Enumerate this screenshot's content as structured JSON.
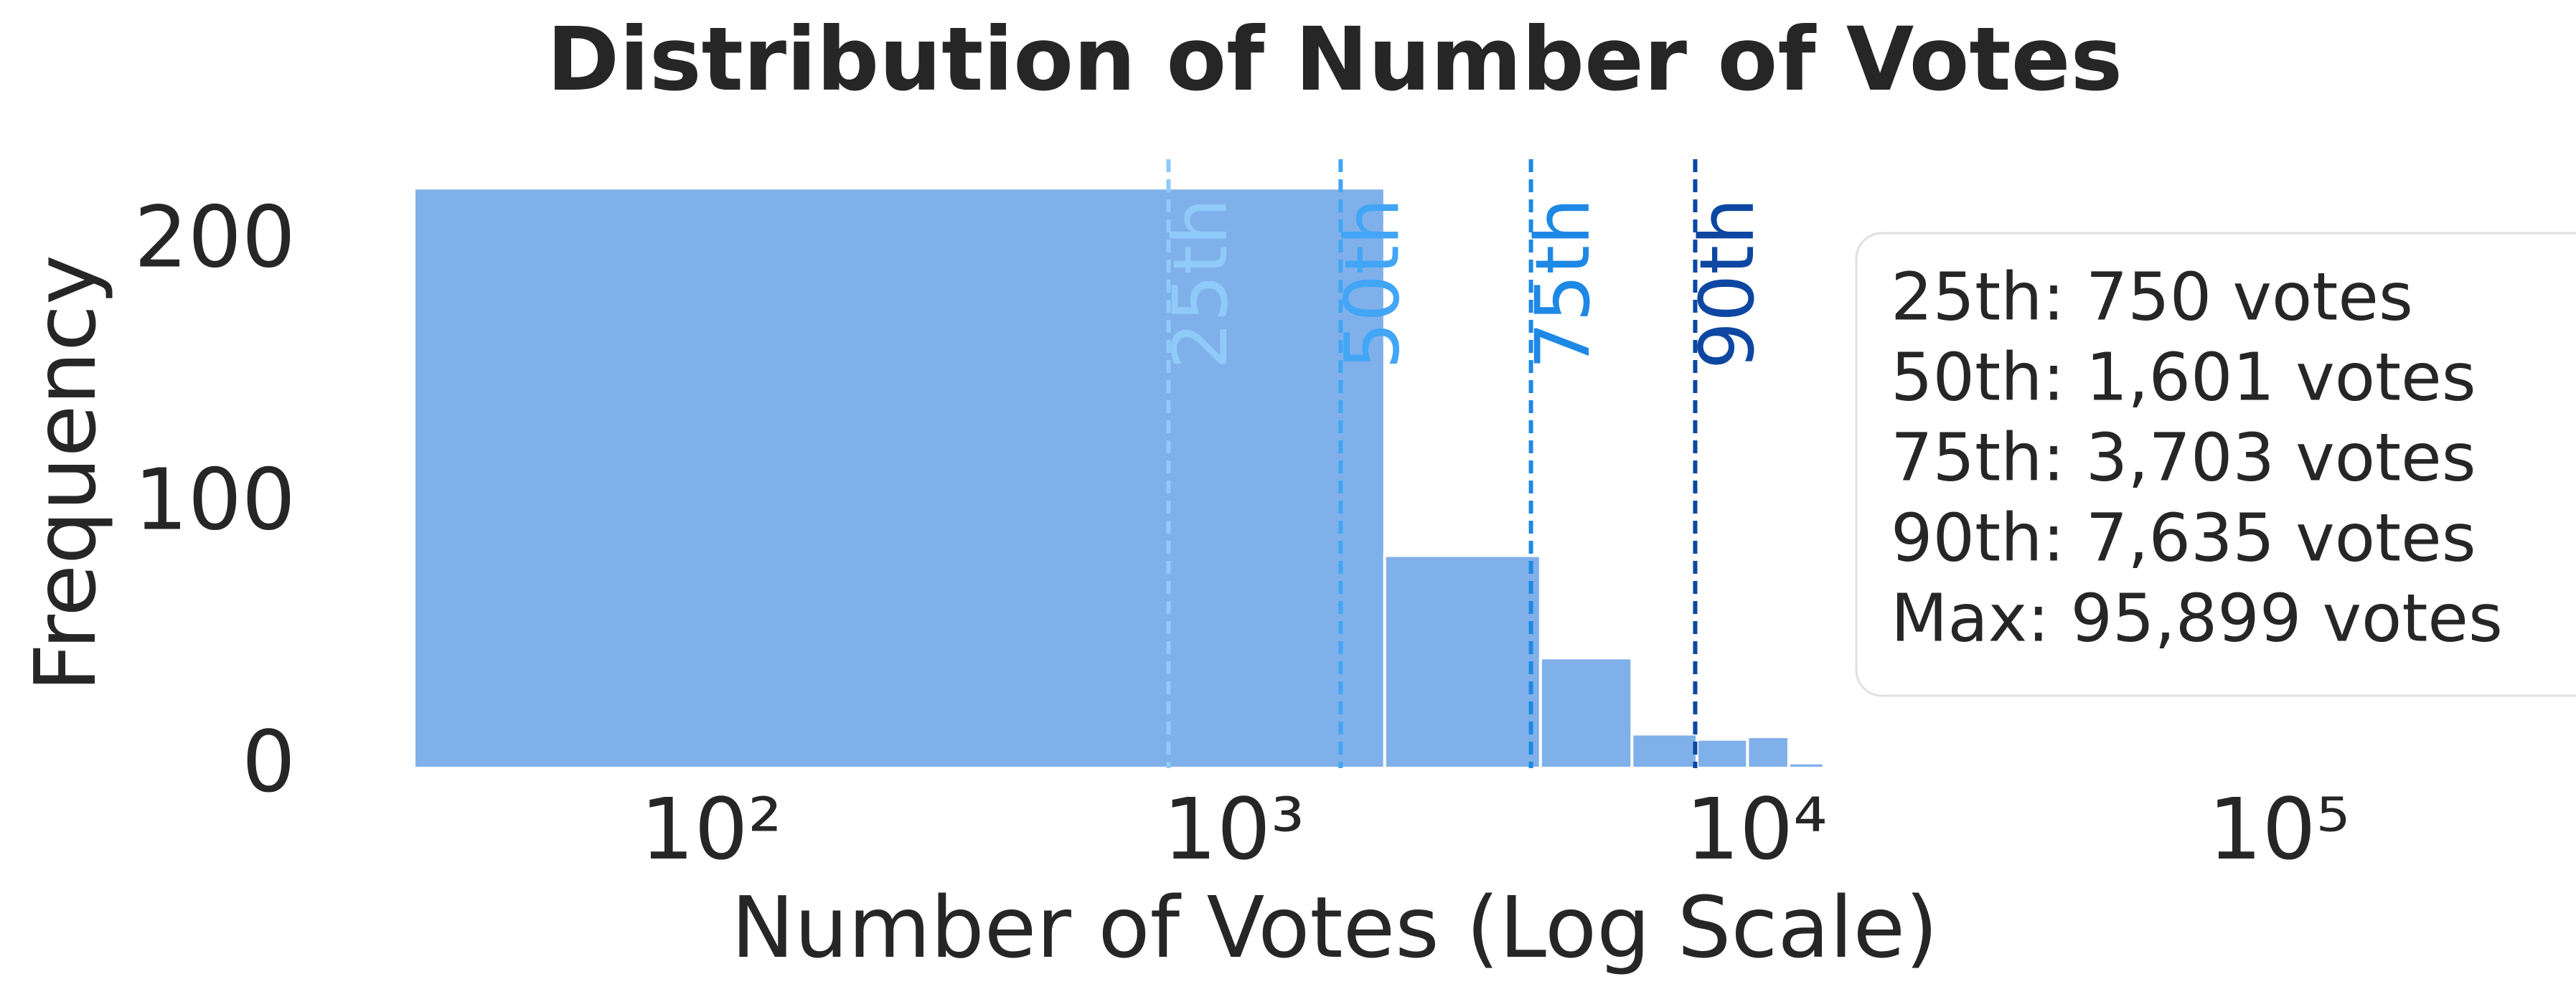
{
  "chart_data": {
    "type": "histogram",
    "title": "Distribution of Number of Votes",
    "xlabel": "Number of Votes (Log Scale)",
    "ylabel": "Frequency",
    "xscale": "log",
    "color": "#80b0ea",
    "bins": [
      27,
      1944,
      3862,
      5779,
      7697,
      9614,
      11532,
      13449,
      15367,
      17284,
      19201,
      21119,
      23036,
      24954,
      26871,
      28789,
      30706,
      32623,
      34541,
      36458,
      38376,
      40293,
      42211,
      44128,
      46046,
      47963,
      49880,
      51798,
      53715,
      55633,
      57550,
      59468,
      61385,
      63303,
      65220,
      67137,
      69055,
      70972,
      72890,
      74807,
      76725,
      78642,
      80559,
      82477,
      84394,
      86312,
      88229,
      90147,
      92064,
      93982,
      95899
    ],
    "values": [
      221,
      81,
      42,
      13,
      11,
      12,
      2,
      0,
      0,
      0,
      0,
      0,
      0,
      0,
      0,
      0,
      0,
      0,
      0,
      0,
      0,
      0,
      0,
      0,
      0,
      0,
      0,
      0,
      0,
      0,
      0,
      0,
      0,
      0,
      0,
      0,
      0,
      0,
      0,
      0,
      0,
      0,
      0,
      0,
      0,
      0,
      0,
      0,
      0,
      1
    ],
    "xlim": [
      27,
      370000
    ],
    "ylim": [
      0,
      232
    ],
    "xticks": [
      {
        "value": 100,
        "label": "10²"
      },
      {
        "value": 1000,
        "label": "10³"
      },
      {
        "value": 10000,
        "label": "10⁴"
      },
      {
        "value": 100000,
        "label": "10⁵"
      }
    ],
    "yticks": [
      0,
      100,
      200
    ],
    "percentiles": [
      {
        "name": "25th",
        "value": 750,
        "color": "#90caf9"
      },
      {
        "name": "50th",
        "value": 1601,
        "color": "#42a5f5"
      },
      {
        "name": "75th",
        "value": 3703,
        "color": "#1e88e5"
      },
      {
        "name": "90th",
        "value": 7635,
        "color": "#0d47a1"
      }
    ],
    "legend": "right",
    "legend_lines": [
      "25th: 750 votes",
      "50th: 1,601 votes",
      "75th: 3,703 votes",
      "90th: 7,635 votes",
      "Max: 95,899 votes"
    ]
  }
}
